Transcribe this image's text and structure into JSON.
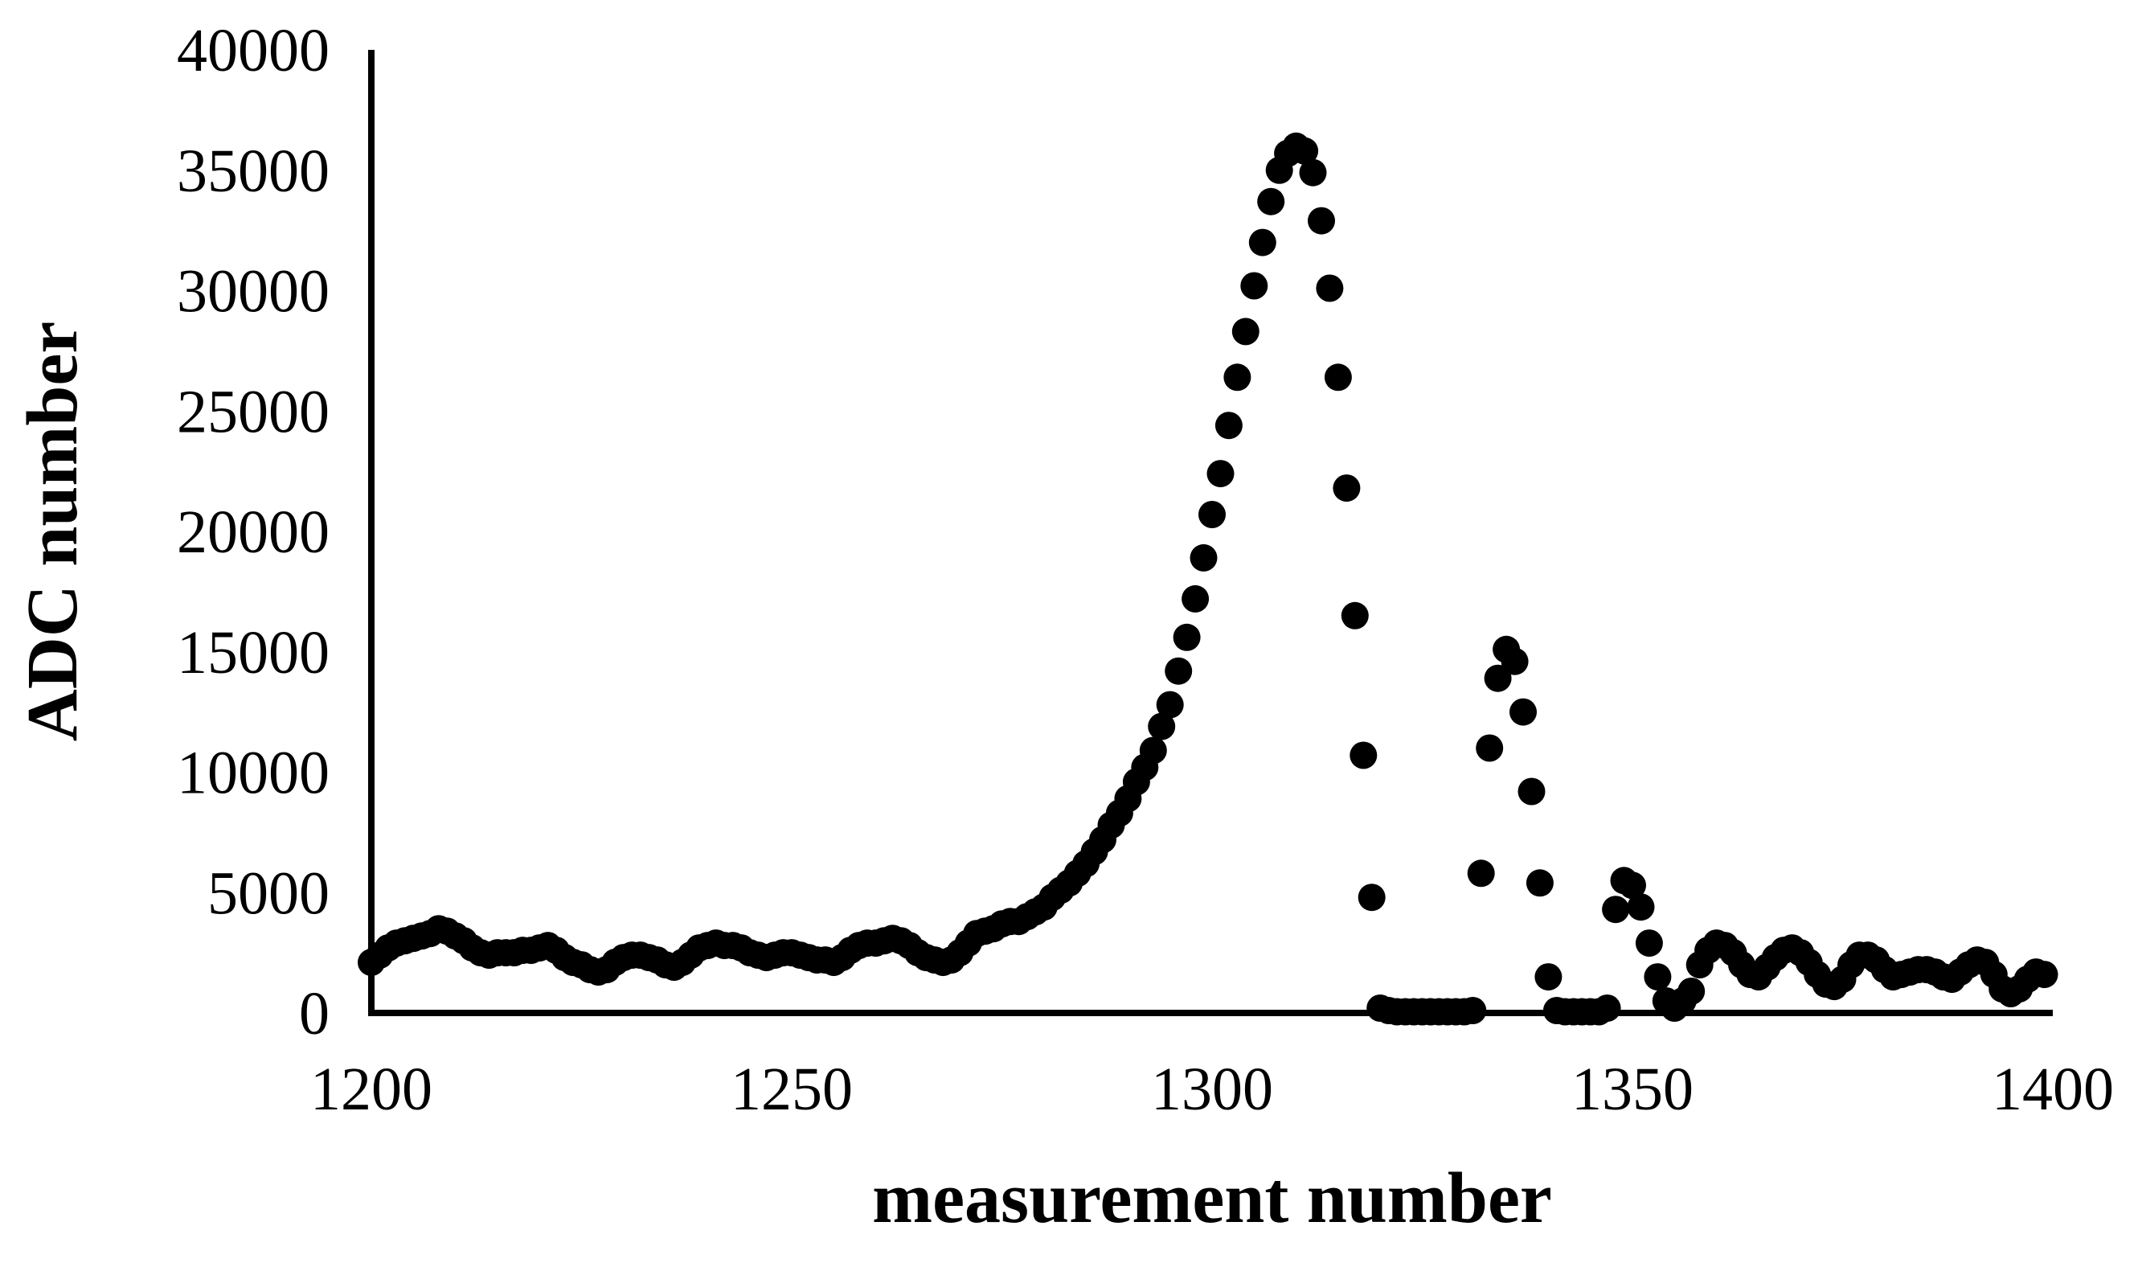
{
  "chart_data": {
    "type": "scatter",
    "title": "",
    "xlabel": "measurement number",
    "ylabel": "ADC number",
    "xlim": [
      1200,
      1400
    ],
    "ylim": [
      0,
      40000
    ],
    "x_ticks": [
      "1200",
      "1250",
      "1300",
      "1350",
      "1400"
    ],
    "y_ticks": [
      "0",
      "5000",
      "10000",
      "15000",
      "20000",
      "25000",
      "30000",
      "35000",
      "40000"
    ],
    "grid": false,
    "legend": "none",
    "marker_color": "#000000",
    "series": [
      {
        "points": [
          [
            1200,
            2100
          ],
          [
            1201,
            2400
          ],
          [
            1202,
            2700
          ],
          [
            1203,
            2900
          ],
          [
            1204,
            3000
          ],
          [
            1205,
            3100
          ],
          [
            1206,
            3200
          ],
          [
            1207,
            3300
          ],
          [
            1208,
            3500
          ],
          [
            1209,
            3400
          ],
          [
            1210,
            3200
          ],
          [
            1211,
            3000
          ],
          [
            1212,
            2700
          ],
          [
            1213,
            2500
          ],
          [
            1214,
            2400
          ],
          [
            1215,
            2500
          ],
          [
            1216,
            2500
          ],
          [
            1217,
            2500
          ],
          [
            1218,
            2600
          ],
          [
            1219,
            2600
          ],
          [
            1220,
            2700
          ],
          [
            1221,
            2800
          ],
          [
            1222,
            2600
          ],
          [
            1223,
            2300
          ],
          [
            1224,
            2100
          ],
          [
            1225,
            2000
          ],
          [
            1226,
            1800
          ],
          [
            1227,
            1700
          ],
          [
            1228,
            1800
          ],
          [
            1229,
            2100
          ],
          [
            1230,
            2300
          ],
          [
            1231,
            2400
          ],
          [
            1232,
            2400
          ],
          [
            1233,
            2300
          ],
          [
            1234,
            2200
          ],
          [
            1235,
            2000
          ],
          [
            1236,
            1900
          ],
          [
            1237,
            2100
          ],
          [
            1238,
            2400
          ],
          [
            1239,
            2700
          ],
          [
            1240,
            2800
          ],
          [
            1241,
            2900
          ],
          [
            1242,
            2800
          ],
          [
            1243,
            2800
          ],
          [
            1244,
            2700
          ],
          [
            1245,
            2500
          ],
          [
            1246,
            2400
          ],
          [
            1247,
            2300
          ],
          [
            1248,
            2400
          ],
          [
            1249,
            2500
          ],
          [
            1250,
            2500
          ],
          [
            1251,
            2400
          ],
          [
            1252,
            2300
          ],
          [
            1253,
            2200
          ],
          [
            1254,
            2200
          ],
          [
            1255,
            2100
          ],
          [
            1256,
            2300
          ],
          [
            1257,
            2600
          ],
          [
            1258,
            2800
          ],
          [
            1259,
            2900
          ],
          [
            1260,
            2900
          ],
          [
            1261,
            3000
          ],
          [
            1262,
            3100
          ],
          [
            1263,
            3000
          ],
          [
            1264,
            2800
          ],
          [
            1265,
            2500
          ],
          [
            1266,
            2300
          ],
          [
            1267,
            2200
          ],
          [
            1268,
            2100
          ],
          [
            1269,
            2200
          ],
          [
            1270,
            2500
          ],
          [
            1271,
            2900
          ],
          [
            1272,
            3300
          ],
          [
            1273,
            3400
          ],
          [
            1274,
            3500
          ],
          [
            1275,
            3700
          ],
          [
            1276,
            3800
          ],
          [
            1277,
            3800
          ],
          [
            1278,
            4000
          ],
          [
            1279,
            4200
          ],
          [
            1280,
            4400
          ],
          [
            1281,
            4800
          ],
          [
            1282,
            5100
          ],
          [
            1283,
            5400
          ],
          [
            1284,
            5800
          ],
          [
            1285,
            6200
          ],
          [
            1286,
            6700
          ],
          [
            1287,
            7200
          ],
          [
            1288,
            7800
          ],
          [
            1289,
            8300
          ],
          [
            1290,
            8900
          ],
          [
            1291,
            9600
          ],
          [
            1292,
            10200
          ],
          [
            1293,
            10900
          ],
          [
            1294,
            11900
          ],
          [
            1295,
            12800
          ],
          [
            1296,
            14200
          ],
          [
            1297,
            15600
          ],
          [
            1298,
            17200
          ],
          [
            1299,
            18900
          ],
          [
            1300,
            20700
          ],
          [
            1301,
            22400
          ],
          [
            1302,
            24400
          ],
          [
            1303,
            26400
          ],
          [
            1304,
            28300
          ],
          [
            1305,
            30200
          ],
          [
            1306,
            32000
          ],
          [
            1307,
            33700
          ],
          [
            1308,
            35000
          ],
          [
            1309,
            35700
          ],
          [
            1310,
            36000
          ],
          [
            1311,
            35800
          ],
          [
            1312,
            34900
          ],
          [
            1313,
            32900
          ],
          [
            1314,
            30100
          ],
          [
            1315,
            26400
          ],
          [
            1316,
            21800
          ],
          [
            1317,
            16500
          ],
          [
            1318,
            10700
          ],
          [
            1319,
            4800
          ],
          [
            1320,
            200
          ],
          [
            1321,
            100
          ],
          [
            1322,
            50
          ],
          [
            1323,
            50
          ],
          [
            1324,
            50
          ],
          [
            1325,
            50
          ],
          [
            1326,
            50
          ],
          [
            1327,
            50
          ],
          [
            1328,
            50
          ],
          [
            1329,
            50
          ],
          [
            1330,
            50
          ],
          [
            1331,
            100
          ],
          [
            1332,
            5800
          ],
          [
            1333,
            11000
          ],
          [
            1334,
            13900
          ],
          [
            1335,
            15100
          ],
          [
            1336,
            14600
          ],
          [
            1337,
            12500
          ],
          [
            1338,
            9200
          ],
          [
            1339,
            5400
          ],
          [
            1340,
            1500
          ],
          [
            1341,
            100
          ],
          [
            1342,
            50
          ],
          [
            1343,
            50
          ],
          [
            1344,
            50
          ],
          [
            1345,
            50
          ],
          [
            1346,
            50
          ],
          [
            1347,
            200
          ],
          [
            1348,
            4300
          ],
          [
            1349,
            5500
          ],
          [
            1350,
            5300
          ],
          [
            1351,
            4400
          ],
          [
            1352,
            2900
          ],
          [
            1353,
            1500
          ],
          [
            1354,
            500
          ],
          [
            1355,
            200
          ],
          [
            1356,
            500
          ],
          [
            1357,
            900
          ],
          [
            1358,
            2000
          ],
          [
            1359,
            2600
          ],
          [
            1360,
            2900
          ],
          [
            1361,
            2800
          ],
          [
            1362,
            2500
          ],
          [
            1363,
            2000
          ],
          [
            1364,
            1600
          ],
          [
            1365,
            1500
          ],
          [
            1366,
            1900
          ],
          [
            1367,
            2300
          ],
          [
            1368,
            2600
          ],
          [
            1369,
            2700
          ],
          [
            1370,
            2500
          ],
          [
            1371,
            2100
          ],
          [
            1372,
            1600
          ],
          [
            1373,
            1200
          ],
          [
            1374,
            1100
          ],
          [
            1375,
            1400
          ],
          [
            1376,
            2000
          ],
          [
            1377,
            2400
          ],
          [
            1378,
            2400
          ],
          [
            1379,
            2200
          ],
          [
            1380,
            1800
          ],
          [
            1381,
            1500
          ],
          [
            1382,
            1600
          ],
          [
            1383,
            1700
          ],
          [
            1384,
            1800
          ],
          [
            1385,
            1800
          ],
          [
            1386,
            1700
          ],
          [
            1387,
            1500
          ],
          [
            1388,
            1400
          ],
          [
            1389,
            1700
          ],
          [
            1390,
            2000
          ],
          [
            1391,
            2200
          ],
          [
            1392,
            2100
          ],
          [
            1393,
            1600
          ],
          [
            1394,
            1000
          ],
          [
            1395,
            800
          ],
          [
            1396,
            1000
          ],
          [
            1397,
            1400
          ],
          [
            1398,
            1700
          ],
          [
            1399,
            1600
          ]
        ]
      }
    ]
  }
}
